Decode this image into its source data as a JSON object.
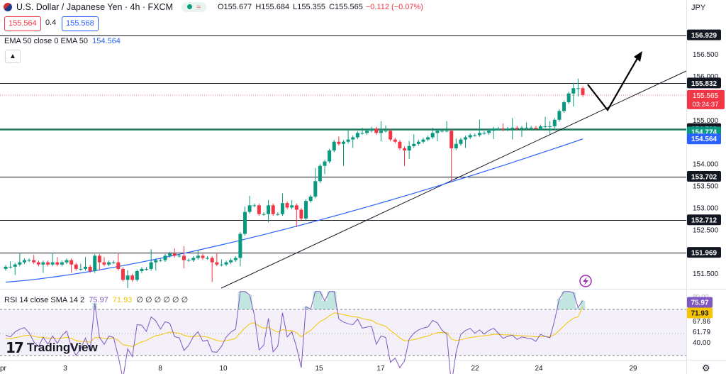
{
  "header": {
    "title": "U.S. Dollar / Japanese Yen · 4h · FXCM",
    "wave": "≈",
    "ohlc": {
      "o": "O155.677",
      "h": "H155.684",
      "l": "L155.355",
      "c": "C155.565"
    },
    "change": "−0.112 (−0.07%)",
    "sell_price": "155.564",
    "spread": "0.4",
    "buy_price": "155.568",
    "currency": "JPY"
  },
  "ema_legend": {
    "label": "EMA 50 close 0 EMA 50",
    "value": "154.564"
  },
  "collapse_icon": "chevron-up-icon",
  "rsi_legend": {
    "label": "RSI 14 close SMA 14 2",
    "rsi": "75.97",
    "sma": "71.93",
    "rest": "∅ ∅ ∅ ∅ ∅ ∅"
  },
  "brand": {
    "name": "TradingView"
  },
  "colors": {
    "up": "#089981",
    "down": "#f23645",
    "ema": "#2962ff",
    "rsi": "#7e57c2",
    "rsi_sma": "#f7c500",
    "support": "#1b7a5e"
  },
  "chart_data": [
    {
      "type": "candlestick",
      "title": "U.S. Dollar / Japanese Yen · 4h · FXCM",
      "y_range": [
        151.2,
        157.5
      ],
      "y_ticks": [
        "156.500",
        "156.000",
        "155.000",
        "154.000",
        "153.500",
        "153.000",
        "152.500",
        "151.500"
      ],
      "x_ticks": [
        "Apr",
        "3",
        "8",
        "10",
        "15",
        "17",
        "22",
        "24",
        "29"
      ],
      "closes": [
        151.65,
        151.65,
        151.7,
        151.75,
        151.8,
        151.8,
        151.75,
        151.7,
        151.75,
        151.7,
        151.75,
        151.7,
        151.75,
        151.8,
        151.7,
        151.6,
        151.6,
        151.65,
        151.55,
        151.9,
        151.75,
        151.7,
        151.75,
        151.75,
        151.6,
        151.35,
        151.45,
        151.35,
        151.55,
        151.6,
        151.6,
        151.75,
        151.8,
        151.8,
        151.9,
        151.95,
        151.9,
        151.9,
        151.8,
        151.8,
        151.85,
        151.9,
        151.85,
        151.85,
        151.75,
        151.7,
        151.7,
        151.75,
        151.8,
        151.85,
        152.4,
        152.9,
        153.05,
        153.05,
        152.85,
        152.85,
        153.05,
        152.85,
        152.85,
        153.1,
        153.0,
        153.05,
        152.95,
        152.75,
        153.15,
        153.25,
        153.6,
        153.95,
        154.05,
        154.3,
        154.5,
        154.45,
        154.5,
        154.55,
        154.6,
        154.7,
        154.7,
        154.75,
        154.8,
        154.7,
        154.75,
        154.75,
        154.55,
        154.5,
        154.35,
        154.3,
        154.4,
        154.45,
        154.5,
        154.55,
        154.6,
        154.7,
        154.75,
        154.75,
        154.75,
        154.35,
        154.45,
        154.55,
        154.6,
        154.65,
        154.65,
        154.7,
        154.7,
        154.75,
        154.8,
        154.8,
        154.78,
        154.8,
        154.82,
        154.8,
        154.82,
        154.82,
        154.82,
        154.8,
        154.85,
        154.85,
        154.85,
        155.0,
        155.2,
        155.4,
        155.6,
        155.72,
        155.72,
        155.565
      ],
      "ema50": {
        "name": "EMA 50",
        "start": 151.3,
        "end": 154.564
      },
      "levels": [
        {
          "value": 156.929,
          "label": "156.929"
        },
        {
          "value": 155.832,
          "label": "155.832"
        },
        {
          "value": 154.792,
          "label": "154.792"
        },
        {
          "value": 153.702,
          "label": "153.702"
        },
        {
          "value": 152.712,
          "label": "152.712"
        },
        {
          "value": 151.969,
          "label": "151.969"
        }
      ],
      "price_badges": [
        {
          "label": "155.565",
          "countdown": "03:24:37",
          "color": "#f23645"
        },
        {
          "label": "154.774",
          "color": "#089981"
        },
        {
          "label": "154.564",
          "color": "#2962ff"
        }
      ]
    },
    {
      "type": "line",
      "title": "RSI 14 close SMA 14 2",
      "y_ticks": [
        "67.86",
        "61.79",
        "40.00"
      ],
      "series": [
        {
          "name": "RSI",
          "last": "75.97"
        },
        {
          "name": "SMA",
          "last": "71.93"
        }
      ],
      "partial_tick": "80.00"
    }
  ]
}
